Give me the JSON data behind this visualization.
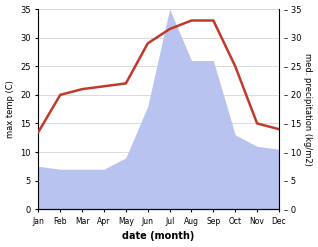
{
  "months": [
    "Jan",
    "Feb",
    "Mar",
    "Apr",
    "May",
    "Jun",
    "Jul",
    "Aug",
    "Sep",
    "Oct",
    "Nov",
    "Dec"
  ],
  "temperature": [
    13.5,
    20.0,
    21.0,
    21.5,
    22.0,
    29.0,
    31.5,
    33.0,
    33.0,
    25.0,
    15.0,
    14.0
  ],
  "precipitation": [
    7.5,
    7.0,
    7.0,
    7.0,
    9.0,
    18.0,
    35.0,
    26.0,
    26.0,
    13.0,
    11.0,
    10.5
  ],
  "temp_color": "#c0392b",
  "precip_color": "#b8c4ef",
  "ylim": [
    0,
    35
  ],
  "yticks": [
    0,
    5,
    10,
    15,
    20,
    25,
    30,
    35
  ],
  "xlabel": "date (month)",
  "ylabel_left": "max temp (C)",
  "ylabel_right": "med. precipitation (kg/m2)",
  "bg_color": "#ffffff",
  "grid_color": "#cccccc"
}
